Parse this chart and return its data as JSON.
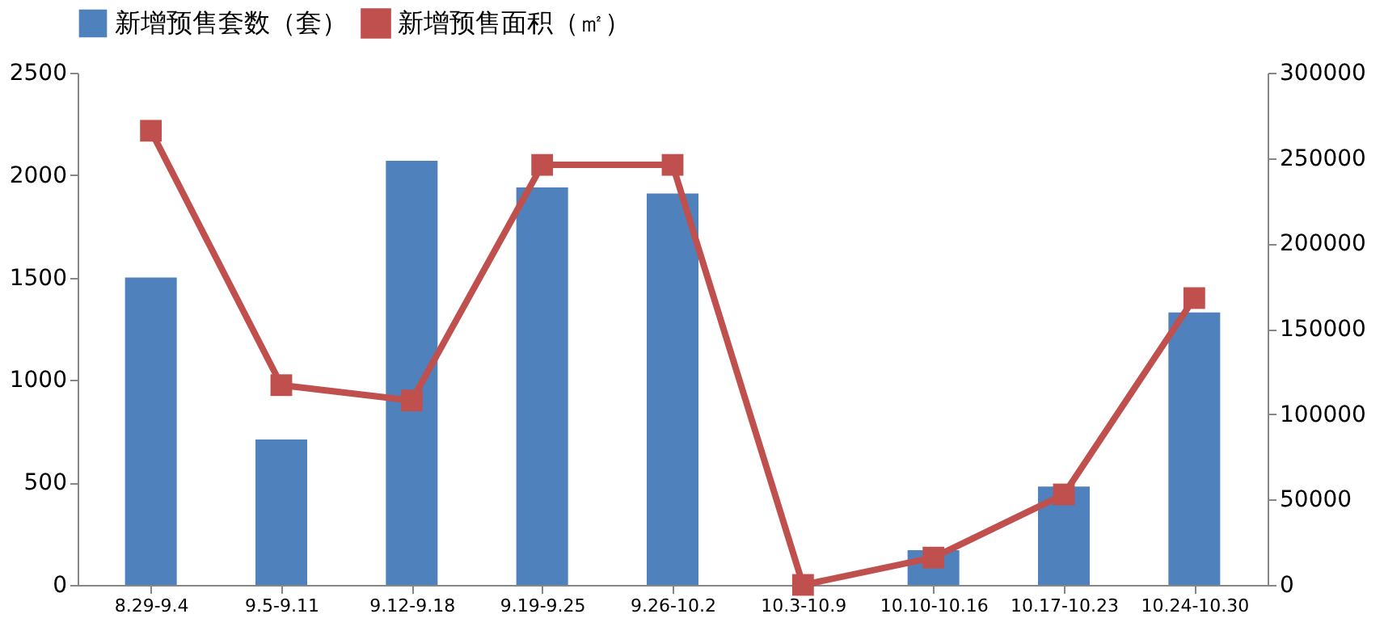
{
  "chart_data": {
    "type": "bar",
    "categories": [
      "8.29-9.4",
      "9.5-9.11",
      "9.12-9.18",
      "9.19-9.25",
      "9.26-10.2",
      "10.3-10.9",
      "10.10-10.16",
      "10.17-10.23",
      "10.24-10.30"
    ],
    "series": [
      {
        "name": "新增预售套数（套）",
        "color": "#4f81bd",
        "values": [
          1500,
          710,
          2070,
          1940,
          1910,
          0,
          170,
          480,
          1330
        ]
      },
      {
        "name": "新增预售面积（㎡）",
        "type": "line",
        "axis": "y2",
        "color": "#c0504d",
        "marker": "square",
        "values": [
          266000,
          117000,
          108000,
          246000,
          246000,
          0,
          16000,
          53000,
          168000
        ]
      }
    ],
    "ylim": [
      0,
      2500
    ],
    "yticks": [
      0,
      500,
      1000,
      1500,
      2000,
      2500
    ],
    "y2lim": [
      0,
      300000
    ],
    "y2ticks": [
      0,
      50000,
      100000,
      150000,
      200000,
      250000,
      300000
    ],
    "grid": false,
    "legend": "top"
  }
}
